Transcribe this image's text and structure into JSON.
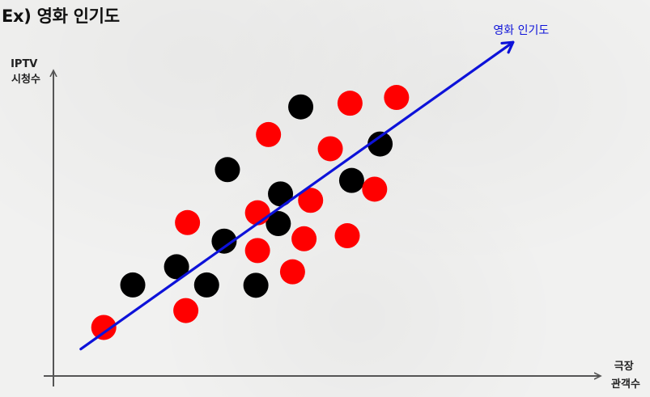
{
  "slide": {
    "title": "Ex) 영화 인기도"
  },
  "colors": {
    "black_dots": "#000000",
    "red_dots": "#ff0000",
    "trend_arrow": "#0d12d9",
    "axis": "#555555"
  },
  "chart_data": {
    "type": "scatter",
    "title": "",
    "xlabel": [
      "극장",
      "관객수"
    ],
    "ylabel": [
      "IPTV",
      "시청수"
    ],
    "xlim": [
      0,
      100
    ],
    "ylim": [
      0,
      100
    ],
    "grid": false,
    "axis_ticks": false,
    "series": [
      {
        "color": "#000000",
        "points": [
          [
            14.5,
            27.0
          ],
          [
            22.5,
            32.4
          ],
          [
            28.0,
            27.0
          ],
          [
            31.2,
            40.0
          ],
          [
            31.8,
            61.2
          ],
          [
            37.0,
            26.9
          ],
          [
            41.1,
            45.2
          ],
          [
            41.5,
            54.0
          ],
          [
            45.2,
            79.8
          ],
          [
            54.5,
            58.0
          ],
          [
            59.7,
            68.8
          ]
        ]
      },
      {
        "color": "#ff0000",
        "points": [
          [
            9.2,
            14.4
          ],
          [
            24.2,
            19.4
          ],
          [
            24.5,
            45.5
          ],
          [
            37.3,
            48.4
          ],
          [
            37.3,
            37.2
          ],
          [
            39.3,
            71.6
          ],
          [
            43.7,
            30.9
          ],
          [
            45.8,
            40.7
          ],
          [
            47.0,
            52.1
          ],
          [
            50.6,
            67.4
          ],
          [
            53.7,
            41.6
          ],
          [
            54.2,
            80.9
          ],
          [
            58.7,
            55.4
          ],
          [
            62.7,
            82.6
          ]
        ]
      }
    ],
    "trend": {
      "label": "영화 인기도",
      "start": [
        5.0,
        8.0
      ],
      "end": [
        84.0,
        99.0
      ],
      "arrowhead": true
    }
  }
}
